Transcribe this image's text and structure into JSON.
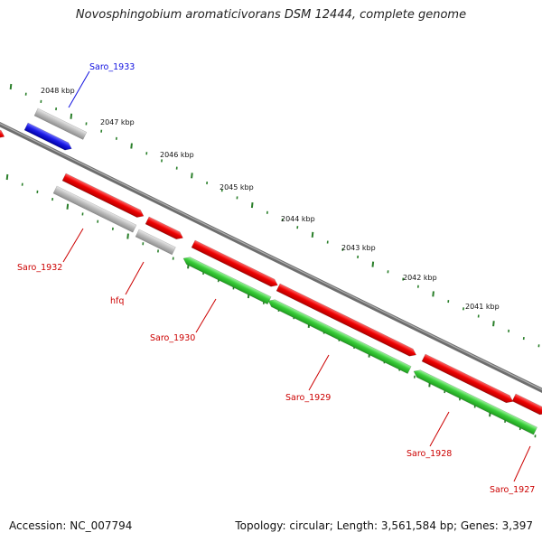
{
  "title": "Novosphingobium aromaticivorans DSM 12444, complete genome",
  "footer": {
    "accession": "Accession: NC_007794",
    "summary": "Topology: circular; Length: 3,561,584 bp; Genes: 3,397"
  },
  "colors": {
    "forward_gene": "#e00000",
    "reverse_gene": "#2fc42f",
    "non_coding": "#b8b8b8",
    "highlighted": "#1010e0",
    "tick": "#2a7f2a",
    "backbone": "#888888"
  },
  "scale_labels": [
    {
      "id": "kbp-2048",
      "text": "2048 kbp"
    },
    {
      "id": "kbp-2047",
      "text": "2047 kbp"
    },
    {
      "id": "kbp-2046",
      "text": "2046 kbp"
    },
    {
      "id": "kbp-2045",
      "text": "2045 kbp"
    },
    {
      "id": "kbp-2044",
      "text": "2044 kbp"
    },
    {
      "id": "kbp-2043",
      "text": "2043 kbp"
    },
    {
      "id": "kbp-2042",
      "text": "2042 kbp"
    },
    {
      "id": "kbp-2041",
      "text": "2041 kbp"
    }
  ],
  "gene_labels": [
    {
      "id": "saro-1933",
      "text": "Saro_1933",
      "color": "#1010e0"
    },
    {
      "id": "saro-1932",
      "text": "Saro_1932",
      "color": "#cc0000"
    },
    {
      "id": "hfq",
      "text": "hfq",
      "color": "#cc0000"
    },
    {
      "id": "saro-1930",
      "text": "Saro_1930",
      "color": "#cc0000"
    },
    {
      "id": "saro-1929",
      "text": "Saro_1929",
      "color": "#cc0000"
    },
    {
      "id": "saro-1928",
      "text": "Saro_1928",
      "color": "#cc0000"
    },
    {
      "id": "saro-1927",
      "text": "Saro_1927",
      "color": "#cc0000"
    }
  ]
}
